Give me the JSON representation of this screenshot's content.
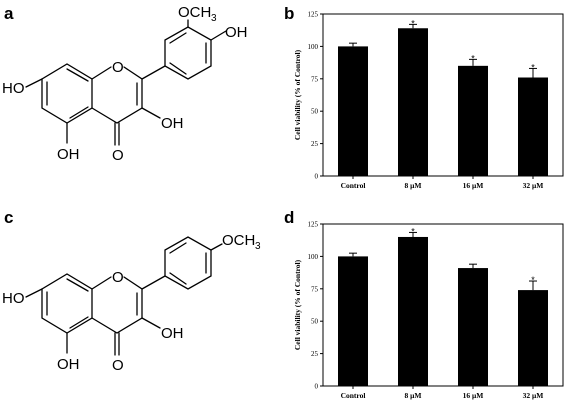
{
  "panels": {
    "a": "a",
    "b": "b",
    "c": "c",
    "d": "d"
  },
  "structure_a": {
    "och3": "OCH",
    "och3_sub": "3",
    "oh_top": "OH",
    "oh_left": "HO",
    "oh_bottom": "OH",
    "oh_right": "OH",
    "o_ring": "O",
    "o_carbonyl": "O"
  },
  "structure_c": {
    "och3": "OCH",
    "och3_sub": "3",
    "oh_left": "HO",
    "oh_bottom": "OH",
    "oh_right": "OH",
    "o_ring": "O",
    "o_carbonyl": "O"
  },
  "chart_data": [
    {
      "id": "b",
      "type": "bar",
      "categories": [
        "Control",
        "8 μM",
        "16 μM",
        "32 μM"
      ],
      "values": [
        100,
        114,
        85,
        76
      ],
      "errors": [
        2.5,
        3,
        5,
        7
      ],
      "significant": [
        false,
        true,
        true,
        true
      ],
      "significance_mark": "*",
      "ylabel": "Cell viability (% of Control)",
      "ylim": [
        0,
        125
      ],
      "yticks": [
        0,
        25,
        50,
        75,
        100,
        125
      ],
      "grid": false
    },
    {
      "id": "d",
      "type": "bar",
      "categories": [
        "Control",
        "8 μM",
        "16 μM",
        "32 μM"
      ],
      "values": [
        100,
        115,
        91,
        74
      ],
      "errors": [
        2.5,
        3.5,
        3,
        7
      ],
      "significant": [
        false,
        true,
        false,
        true
      ],
      "significance_mark": "*",
      "ylabel": "Cell viability (% of Control)",
      "ylim": [
        0,
        125
      ],
      "yticks": [
        0,
        25,
        50,
        75,
        100,
        125
      ],
      "grid": false
    }
  ]
}
